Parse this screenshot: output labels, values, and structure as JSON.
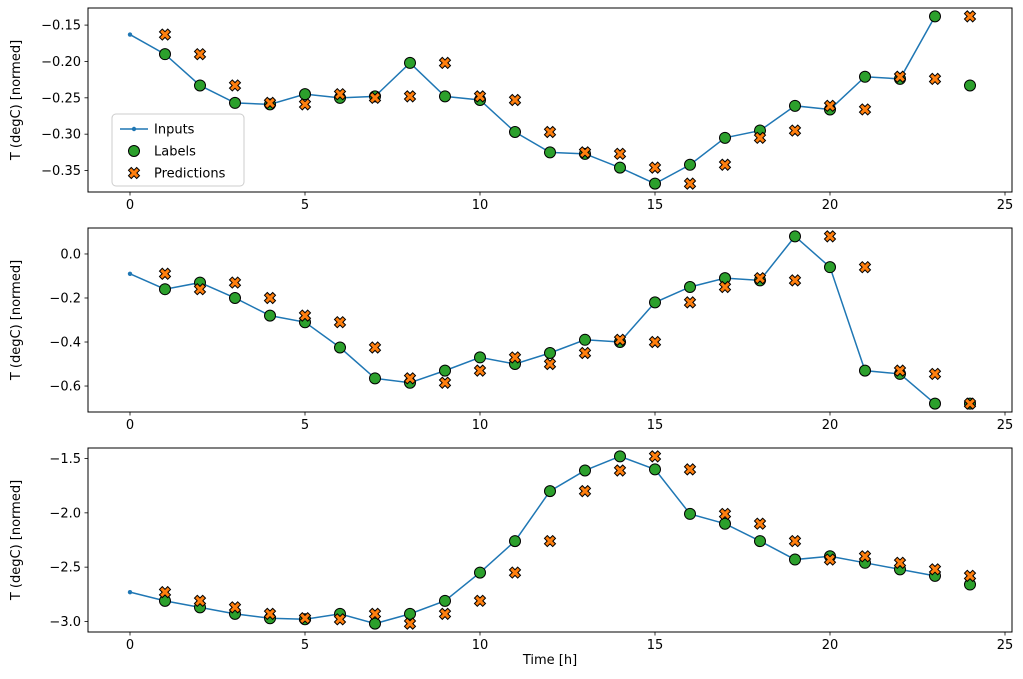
{
  "figure": {
    "xlabel": "Time [h]",
    "ylabel": "T (degC) [normed]",
    "background": "#ffffff",
    "legend": {
      "position": "center-left-of-subplot-1",
      "items": [
        {
          "label": "Inputs",
          "marker": "line-with-dot",
          "color": "#1f77b4",
          "edge_color": "#1f77b4"
        },
        {
          "label": "Labels",
          "marker": "filled-circle",
          "color": "#2ca02c",
          "edge_color": "#000000"
        },
        {
          "label": "Predictions",
          "marker": "thick-x",
          "color": "#ff7f0e",
          "edge_color": "#000000"
        }
      ]
    }
  },
  "chart_data": [
    {
      "type": "line",
      "subplot": 1,
      "ylabel": "T (degC) [normed]",
      "grid": false,
      "legend": true,
      "xlim": [
        -1.2,
        25.2
      ],
      "ylim": [
        -0.3795,
        -0.1265
      ],
      "xticks": [
        0,
        5,
        10,
        15,
        20,
        25
      ],
      "xtick_labels": [
        "0",
        "5",
        "10",
        "15",
        "20",
        "25"
      ],
      "yticks": [
        -0.35,
        -0.3,
        -0.25,
        -0.2,
        -0.15
      ],
      "ytick_labels": [
        "−0.35",
        "−0.30",
        "−0.25",
        "−0.20",
        "−0.15"
      ],
      "series": [
        {
          "name": "Inputs",
          "style": "line+dot",
          "color": "#1f77b4",
          "x": [
            0,
            1,
            2,
            3,
            4,
            5,
            6,
            7,
            8,
            9,
            10,
            11,
            12,
            13,
            14,
            15,
            16,
            17,
            18,
            19,
            20,
            21,
            22,
            23
          ],
          "y": [
            -0.163,
            -0.19,
            -0.233,
            -0.257,
            -0.259,
            -0.245,
            -0.25,
            -0.248,
            -0.202,
            -0.248,
            -0.253,
            -0.297,
            -0.325,
            -0.327,
            -0.346,
            -0.368,
            -0.342,
            -0.305,
            -0.295,
            -0.261,
            -0.266,
            -0.221,
            -0.224,
            -0.138
          ]
        },
        {
          "name": "Labels",
          "style": "circle",
          "color": "#2ca02c",
          "x": [
            1,
            2,
            3,
            4,
            5,
            6,
            7,
            8,
            9,
            10,
            11,
            12,
            13,
            14,
            15,
            16,
            17,
            18,
            19,
            20,
            21,
            22,
            23,
            24
          ],
          "y": [
            -0.19,
            -0.233,
            -0.257,
            -0.259,
            -0.245,
            -0.25,
            -0.248,
            -0.202,
            -0.248,
            -0.253,
            -0.297,
            -0.325,
            -0.327,
            -0.346,
            -0.368,
            -0.342,
            -0.305,
            -0.295,
            -0.261,
            -0.266,
            -0.221,
            -0.224,
            -0.138,
            -0.233
          ]
        },
        {
          "name": "Predictions",
          "style": "x",
          "color": "#ff7f0e",
          "x": [
            1,
            2,
            3,
            4,
            5,
            6,
            7,
            8,
            9,
            10,
            11,
            12,
            13,
            14,
            15,
            16,
            17,
            18,
            19,
            20,
            21,
            22,
            23,
            24
          ],
          "y": [
            -0.163,
            -0.19,
            -0.233,
            -0.257,
            -0.259,
            -0.245,
            -0.25,
            -0.248,
            -0.202,
            -0.248,
            -0.253,
            -0.297,
            -0.325,
            -0.327,
            -0.346,
            -0.368,
            -0.342,
            -0.305,
            -0.295,
            -0.261,
            -0.266,
            -0.221,
            -0.224,
            -0.138
          ]
        }
      ]
    },
    {
      "type": "line",
      "subplot": 2,
      "ylabel": "T (degC) [normed]",
      "grid": false,
      "legend": false,
      "xlim": [
        -1.2,
        25.2
      ],
      "ylim": [
        -0.718,
        0.118
      ],
      "xticks": [
        0,
        5,
        10,
        15,
        20,
        25
      ],
      "xtick_labels": [
        "0",
        "5",
        "10",
        "15",
        "20",
        "25"
      ],
      "yticks": [
        -0.6,
        -0.4,
        -0.2,
        0.0
      ],
      "ytick_labels": [
        "−0.6",
        "−0.4",
        "−0.2",
        "0.0"
      ],
      "series": [
        {
          "name": "Inputs",
          "style": "line+dot",
          "color": "#1f77b4",
          "x": [
            0,
            1,
            2,
            3,
            4,
            5,
            6,
            7,
            8,
            9,
            10,
            11,
            12,
            13,
            14,
            15,
            16,
            17,
            18,
            19,
            20,
            21,
            22,
            23
          ],
          "y": [
            -0.09,
            -0.16,
            -0.13,
            -0.2,
            -0.28,
            -0.31,
            -0.425,
            -0.565,
            -0.585,
            -0.53,
            -0.47,
            -0.5,
            -0.45,
            -0.39,
            -0.4,
            -0.22,
            -0.15,
            -0.11,
            -0.12,
            0.08,
            -0.06,
            -0.53,
            -0.545,
            -0.68
          ]
        },
        {
          "name": "Labels",
          "style": "circle",
          "color": "#2ca02c",
          "x": [
            1,
            2,
            3,
            4,
            5,
            6,
            7,
            8,
            9,
            10,
            11,
            12,
            13,
            14,
            15,
            16,
            17,
            18,
            19,
            20,
            21,
            22,
            23,
            24
          ],
          "y": [
            -0.16,
            -0.13,
            -0.2,
            -0.28,
            -0.31,
            -0.425,
            -0.565,
            -0.585,
            -0.53,
            -0.47,
            -0.5,
            -0.45,
            -0.39,
            -0.4,
            -0.22,
            -0.15,
            -0.11,
            -0.12,
            0.08,
            -0.06,
            -0.53,
            -0.545,
            -0.68,
            -0.68
          ]
        },
        {
          "name": "Predictions",
          "style": "x",
          "color": "#ff7f0e",
          "x": [
            1,
            2,
            3,
            4,
            5,
            6,
            7,
            8,
            9,
            10,
            11,
            12,
            13,
            14,
            15,
            16,
            17,
            18,
            19,
            20,
            21,
            22,
            23,
            24
          ],
          "y": [
            -0.09,
            -0.16,
            -0.13,
            -0.2,
            -0.28,
            -0.31,
            -0.425,
            -0.565,
            -0.585,
            -0.53,
            -0.47,
            -0.5,
            -0.45,
            -0.39,
            -0.4,
            -0.22,
            -0.15,
            -0.11,
            -0.12,
            0.08,
            -0.06,
            -0.53,
            -0.545,
            -0.68
          ]
        }
      ]
    },
    {
      "type": "line",
      "subplot": 3,
      "ylabel": "T (degC) [normed]",
      "xlabel": "Time [h]",
      "grid": false,
      "legend": false,
      "xlim": [
        -1.2,
        25.2
      ],
      "ylim": [
        -3.097,
        -1.403
      ],
      "xticks": [
        0,
        5,
        10,
        15,
        20,
        25
      ],
      "xtick_labels": [
        "0",
        "5",
        "10",
        "15",
        "20",
        "25"
      ],
      "yticks": [
        -3.0,
        -2.5,
        -2.0,
        -1.5
      ],
      "ytick_labels": [
        "−3.0",
        "−2.5",
        "−2.0",
        "−1.5"
      ],
      "series": [
        {
          "name": "Inputs",
          "style": "line+dot",
          "color": "#1f77b4",
          "x": [
            0,
            1,
            2,
            3,
            4,
            5,
            6,
            7,
            8,
            9,
            10,
            11,
            12,
            13,
            14,
            15,
            16,
            17,
            18,
            19,
            20,
            21,
            22,
            23
          ],
          "y": [
            -2.73,
            -2.81,
            -2.87,
            -2.93,
            -2.97,
            -2.98,
            -2.93,
            -3.02,
            -2.93,
            -2.81,
            -2.55,
            -2.26,
            -1.8,
            -1.61,
            -1.48,
            -1.6,
            -2.01,
            -2.1,
            -2.26,
            -2.43,
            -2.4,
            -2.46,
            -2.52,
            -2.58
          ]
        },
        {
          "name": "Labels",
          "style": "circle",
          "color": "#2ca02c",
          "x": [
            1,
            2,
            3,
            4,
            5,
            6,
            7,
            8,
            9,
            10,
            11,
            12,
            13,
            14,
            15,
            16,
            17,
            18,
            19,
            20,
            21,
            22,
            23,
            24
          ],
          "y": [
            -2.81,
            -2.87,
            -2.93,
            -2.97,
            -2.98,
            -2.93,
            -3.02,
            -2.93,
            -2.81,
            -2.55,
            -2.26,
            -1.8,
            -1.61,
            -1.48,
            -1.6,
            -2.01,
            -2.1,
            -2.26,
            -2.43,
            -2.4,
            -2.46,
            -2.52,
            -2.58,
            -2.66
          ]
        },
        {
          "name": "Predictions",
          "style": "x",
          "color": "#ff7f0e",
          "x": [
            1,
            2,
            3,
            4,
            5,
            6,
            7,
            8,
            9,
            10,
            11,
            12,
            13,
            14,
            15,
            16,
            17,
            18,
            19,
            20,
            21,
            22,
            23,
            24
          ],
          "y": [
            -2.73,
            -2.81,
            -2.87,
            -2.93,
            -2.97,
            -2.98,
            -2.93,
            -3.02,
            -2.93,
            -2.81,
            -2.55,
            -2.26,
            -1.8,
            -1.61,
            -1.48,
            -1.6,
            -2.01,
            -2.1,
            -2.26,
            -2.43,
            -2.4,
            -2.46,
            -2.52,
            -2.58
          ]
        }
      ]
    }
  ]
}
